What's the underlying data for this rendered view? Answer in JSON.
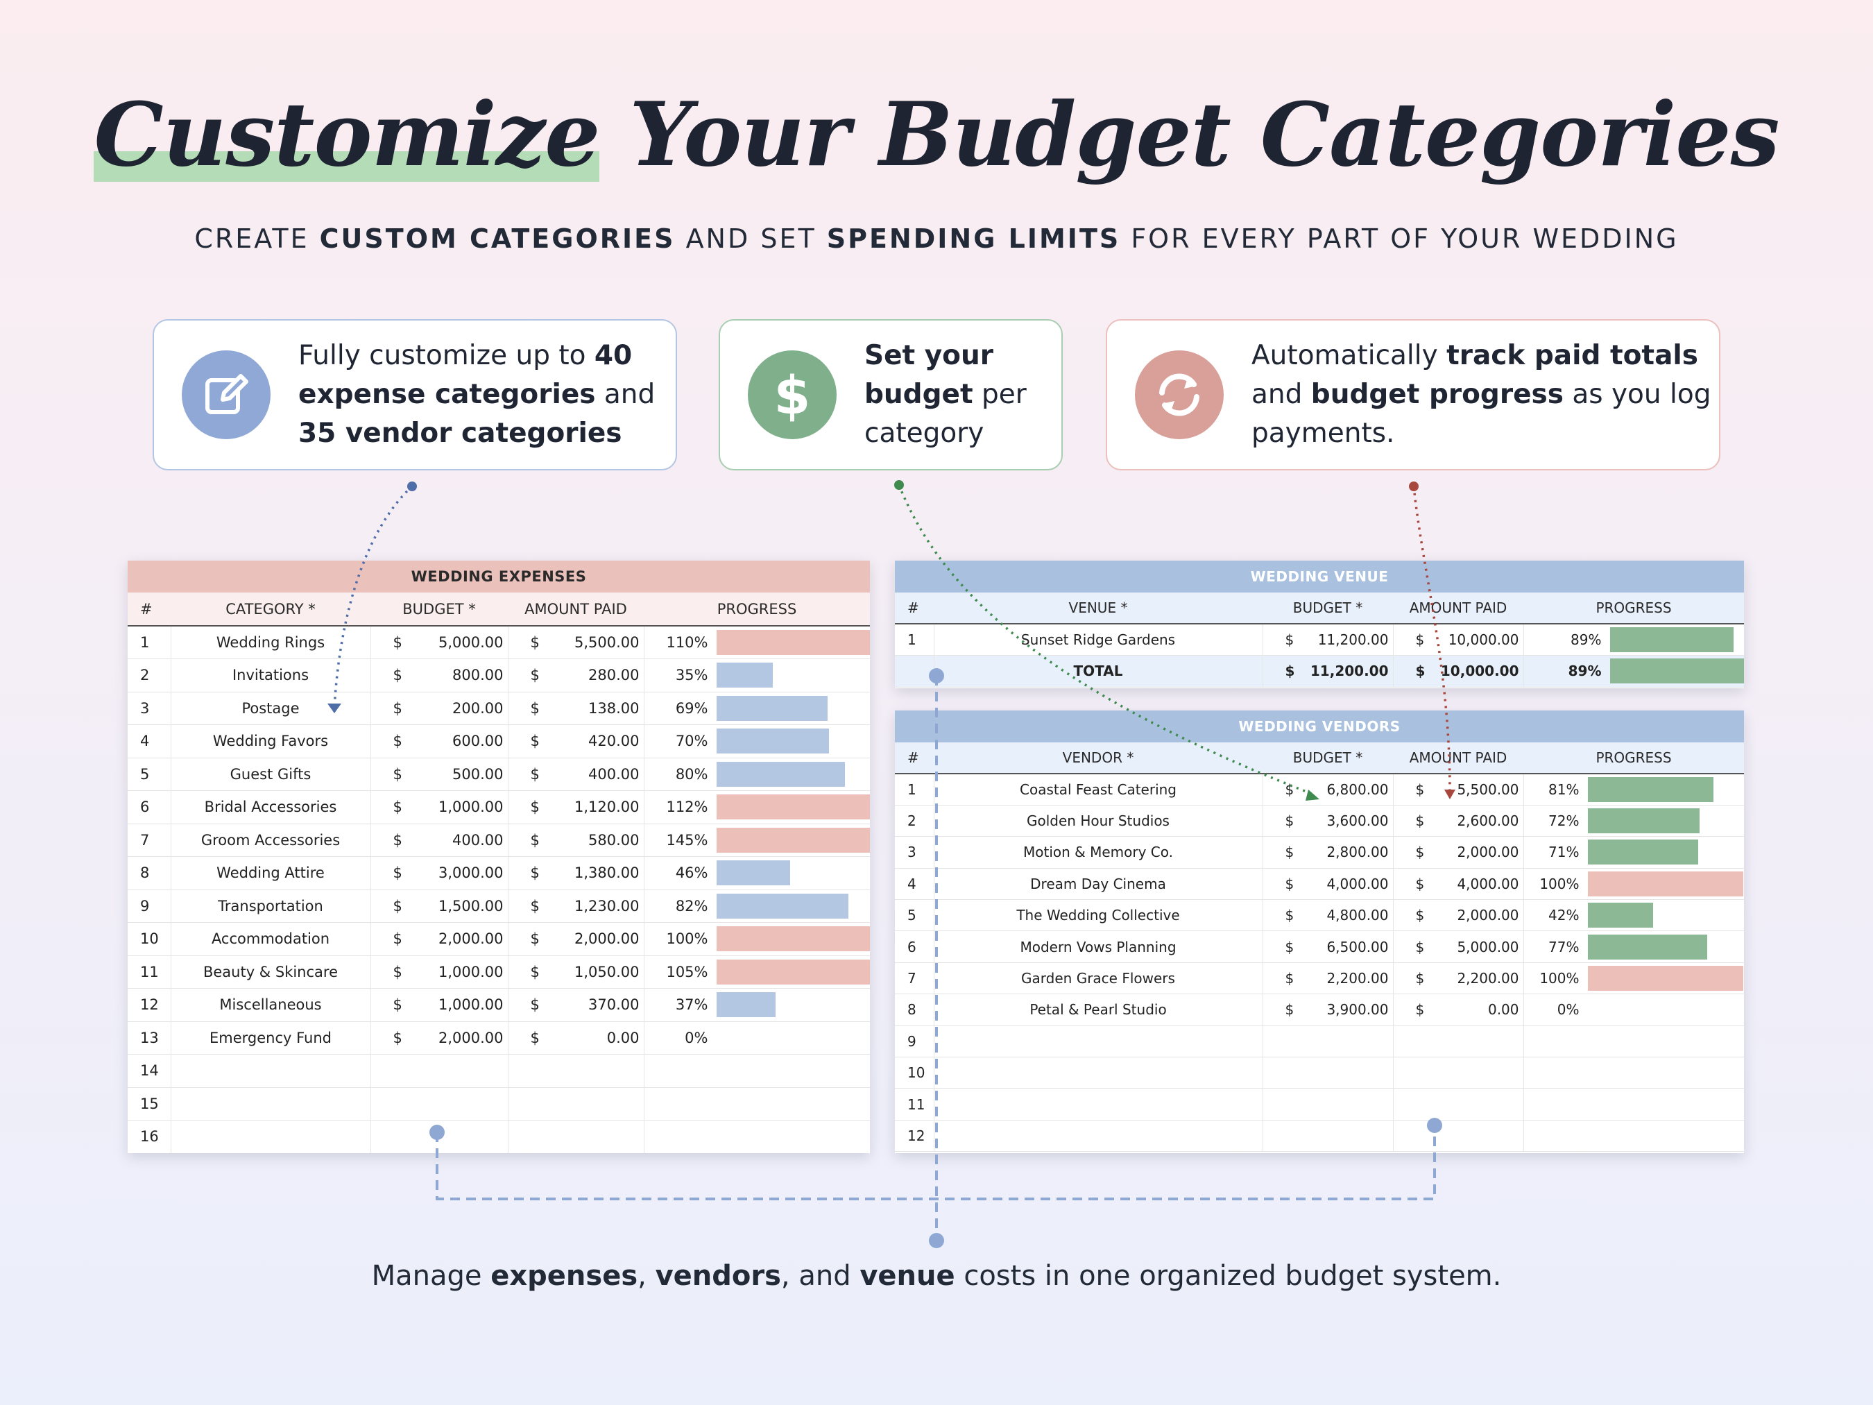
{
  "title": {
    "highlight": "Customize",
    "rest": " Your Budget Categories"
  },
  "subtitle": {
    "p1": "CREATE ",
    "b1": "CUSTOM CATEGORIES",
    "p2": " AND SET ",
    "b2": "SPENDING LIMITS",
    "p3": " FOR EVERY PART OF YOUR WEDDING"
  },
  "cards": [
    {
      "icon": "edit-icon",
      "color": "#8fa8d6",
      "parts": [
        "Fully customize up to ",
        "40 expense categories",
        " and ",
        "35 vendor categories"
      ]
    },
    {
      "icon": "dollar-icon",
      "color": "#7fb08b",
      "glyph": "$",
      "parts": [
        "Set your budget",
        " per category"
      ]
    },
    {
      "icon": "refresh-icon",
      "color": "#d9a09a",
      "parts": [
        "Automatically ",
        "track paid totals",
        " and ",
        "budget progress",
        " as you log payments."
      ]
    }
  ],
  "expenses": {
    "title": "WEDDING EXPENSES",
    "headers": [
      "#",
      "CATEGORY *",
      "BUDGET *",
      "AMOUNT PAID",
      "PROGRESS"
    ],
    "rows": [
      {
        "n": "1",
        "name": "Wedding Rings",
        "budget": "5,000.00",
        "paid": "5,500.00",
        "pct": "110%",
        "progress": 1.1
      },
      {
        "n": "2",
        "name": "Invitations",
        "budget": "800.00",
        "paid": "280.00",
        "pct": "35%",
        "progress": 0.35
      },
      {
        "n": "3",
        "name": "Postage",
        "budget": "200.00",
        "paid": "138.00",
        "pct": "69%",
        "progress": 0.69
      },
      {
        "n": "4",
        "name": "Wedding Favors",
        "budget": "600.00",
        "paid": "420.00",
        "pct": "70%",
        "progress": 0.7
      },
      {
        "n": "5",
        "name": "Guest Gifts",
        "budget": "500.00",
        "paid": "400.00",
        "pct": "80%",
        "progress": 0.8
      },
      {
        "n": "6",
        "name": "Bridal Accessories",
        "budget": "1,000.00",
        "paid": "1,120.00",
        "pct": "112%",
        "progress": 1.12
      },
      {
        "n": "7",
        "name": "Groom Accessories",
        "budget": "400.00",
        "paid": "580.00",
        "pct": "145%",
        "progress": 1.45
      },
      {
        "n": "8",
        "name": "Wedding Attire",
        "budget": "3,000.00",
        "paid": "1,380.00",
        "pct": "46%",
        "progress": 0.46
      },
      {
        "n": "9",
        "name": "Transportation",
        "budget": "1,500.00",
        "paid": "1,230.00",
        "pct": "82%",
        "progress": 0.82
      },
      {
        "n": "10",
        "name": "Accommodation",
        "budget": "2,000.00",
        "paid": "2,000.00",
        "pct": "100%",
        "progress": 1.0
      },
      {
        "n": "11",
        "name": "Beauty & Skincare",
        "budget": "1,000.00",
        "paid": "1,050.00",
        "pct": "105%",
        "progress": 1.05
      },
      {
        "n": "12",
        "name": "Miscellaneous",
        "budget": "1,000.00",
        "paid": "370.00",
        "pct": "37%",
        "progress": 0.37
      },
      {
        "n": "13",
        "name": "Emergency Fund",
        "budget": "2,000.00",
        "paid": "0.00",
        "pct": "0%",
        "progress": 0
      },
      {
        "n": "14"
      },
      {
        "n": "15"
      },
      {
        "n": "16"
      }
    ]
  },
  "venue": {
    "title": "WEDDING VENUE",
    "headers": [
      "#",
      "VENUE *",
      "BUDGET *",
      "AMOUNT PAID",
      "PROGRESS"
    ],
    "rows": [
      {
        "n": "1",
        "name": "Sunset Ridge Gardens",
        "budget": "11,200.00",
        "paid": "10,000.00",
        "pct": "89%",
        "progress": 0.89
      }
    ],
    "total": {
      "label": "TOTAL",
      "budget": "11,200.00",
      "paid": "10,000.00",
      "pct": "89%",
      "progress": 0.89
    }
  },
  "vendors": {
    "title": "WEDDING VENDORS",
    "headers": [
      "#",
      "VENDOR *",
      "BUDGET *",
      "AMOUNT PAID",
      "PROGRESS"
    ],
    "rows": [
      {
        "n": "1",
        "name": "Coastal Feast Catering",
        "budget": "6,800.00",
        "paid": "5,500.00",
        "pct": "81%",
        "progress": 0.81
      },
      {
        "n": "2",
        "name": "Golden Hour Studios",
        "budget": "3,600.00",
        "paid": "2,600.00",
        "pct": "72%",
        "progress": 0.72
      },
      {
        "n": "3",
        "name": "Motion & Memory Co.",
        "budget": "2,800.00",
        "paid": "2,000.00",
        "pct": "71%",
        "progress": 0.71
      },
      {
        "n": "4",
        "name": "Dream Day Cinema",
        "budget": "4,000.00",
        "paid": "4,000.00",
        "pct": "100%",
        "progress": 1.0
      },
      {
        "n": "5",
        "name": "The Wedding Collective",
        "budget": "4,800.00",
        "paid": "2,000.00",
        "pct": "42%",
        "progress": 0.42
      },
      {
        "n": "6",
        "name": "Modern Vows Planning",
        "budget": "6,500.00",
        "paid": "5,000.00",
        "pct": "77%",
        "progress": 0.77
      },
      {
        "n": "7",
        "name": "Garden Grace Flowers",
        "budget": "2,200.00",
        "paid": "2,200.00",
        "pct": "100%",
        "progress": 1.0
      },
      {
        "n": "8",
        "name": "Petal & Pearl Studio",
        "budget": "3,900.00",
        "paid": "0.00",
        "pct": "0%",
        "progress": 0
      },
      {
        "n": "9"
      },
      {
        "n": "10"
      },
      {
        "n": "11"
      },
      {
        "n": "12"
      }
    ]
  },
  "currency": "$",
  "footer": {
    "p1": "Manage ",
    "b1": "expenses",
    "p2": ", ",
    "b2": "vendors",
    "p3": ", and ",
    "b3": "venue",
    "p4": " costs in one organized budget system."
  },
  "colors": {
    "over_budget": "#ecbfb9",
    "expense_bar": "#b3c7e2",
    "vendor_bar": "#8cb896",
    "expense_header": "#ebc1bc",
    "vendor_header": "#a9c1df"
  }
}
